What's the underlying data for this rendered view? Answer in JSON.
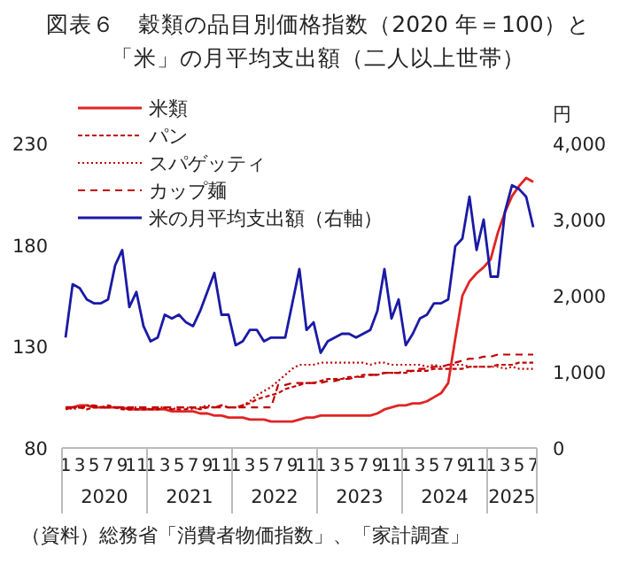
{
  "chart_data": {
    "type": "line",
    "title": "図表６　穀類の品目別価格指数（2020 年＝100）と",
    "subtitle": "「米」の月平均支出額（二人以上世帯）",
    "y2label": "円",
    "categories": [
      "1",
      null,
      "3",
      null,
      "5",
      null,
      "7",
      null,
      "9",
      null,
      "11",
      null,
      "1",
      null,
      "3",
      null,
      "5",
      null,
      "7",
      null,
      "9",
      null,
      "11",
      null,
      "1",
      null,
      "3",
      null,
      "5",
      null,
      "7",
      null,
      "9",
      null,
      "11",
      null,
      "1",
      null,
      "3",
      null,
      "5",
      null,
      "7",
      null,
      "9",
      null,
      "11",
      null,
      "1",
      null,
      "3",
      null,
      "5",
      null,
      "7",
      null,
      "9",
      null,
      "11",
      null,
      "1",
      null,
      "3",
      null,
      "5",
      null,
      "7"
    ],
    "series": [
      {
        "name": "米類",
        "color": "#e02424",
        "line_style": "solid",
        "values": [
          100,
          100,
          101,
          101,
          100,
          100,
          100,
          100,
          100,
          99,
          99,
          99,
          99,
          99,
          99,
          98,
          98,
          98,
          98,
          97,
          97,
          96,
          96,
          95,
          95,
          95,
          94,
          94,
          94,
          93,
          93,
          93,
          93,
          94,
          95,
          95,
          96,
          96,
          96,
          96,
          96,
          96,
          96,
          96,
          97,
          99,
          100,
          101,
          101,
          102,
          102,
          103,
          105,
          107,
          112,
          134,
          155,
          162,
          166,
          169,
          173,
          186,
          196,
          204,
          209,
          213,
          211
        ]
      },
      {
        "name": "パン",
        "color": "#c00000",
        "line_style": "dashed",
        "values": [
          99,
          100,
          100,
          99,
          100,
          100,
          101,
          100,
          99,
          99,
          99,
          99,
          99,
          99,
          100,
          99,
          99,
          99,
          100,
          99,
          100,
          100,
          101,
          100,
          100,
          101,
          102,
          104,
          105,
          106,
          107,
          109,
          110,
          111,
          112,
          112,
          113,
          114,
          114,
          114,
          115,
          115,
          116,
          116,
          116,
          117,
          117,
          117,
          117,
          118,
          118,
          118,
          119,
          119,
          119,
          119,
          119,
          120,
          120,
          120,
          120,
          121,
          121,
          121,
          122,
          122,
          122
        ]
      },
      {
        "name": "スパゲッティ",
        "color": "#c00000",
        "line_style": "dotted",
        "values": [
          100,
          99,
          100,
          101,
          101,
          100,
          100,
          100,
          100,
          99,
          100,
          100,
          99,
          100,
          100,
          99,
          100,
          100,
          99,
          100,
          101,
          100,
          101,
          100,
          100,
          101,
          103,
          106,
          108,
          110,
          113,
          116,
          119,
          121,
          121,
          121,
          122,
          122,
          122,
          122,
          122,
          122,
          122,
          121,
          122,
          122,
          121,
          121,
          121,
          121,
          121,
          120,
          121,
          120,
          121,
          121,
          121,
          120,
          120,
          120,
          120,
          120,
          119,
          120,
          119,
          119,
          119
        ]
      },
      {
        "name": "カップ麺",
        "color": "#c00000",
        "line_style": "dashed",
        "values": [
          100,
          100,
          100,
          100,
          101,
          100,
          100,
          100,
          100,
          100,
          100,
          100,
          100,
          100,
          100,
          100,
          100,
          100,
          100,
          100,
          100,
          100,
          100,
          100,
          100,
          100,
          100,
          100,
          100,
          100,
          111,
          111,
          112,
          112,
          112,
          112,
          112,
          113,
          113,
          114,
          114,
          115,
          115,
          116,
          116,
          117,
          117,
          117,
          118,
          118,
          119,
          119,
          120,
          120,
          121,
          122,
          123,
          124,
          124,
          125,
          125,
          126,
          126,
          126,
          126,
          126,
          126
        ]
      },
      {
        "name": "米の月平均支出額（右軸）",
        "color": "#1a1aa6",
        "line_style": "solid",
        "axis": "y2",
        "values": [
          1450,
          2150,
          2100,
          1950,
          1900,
          1900,
          1950,
          2400,
          2600,
          1850,
          2050,
          1600,
          1400,
          1450,
          1750,
          1700,
          1750,
          1650,
          1600,
          1800,
          2050,
          2300,
          1750,
          1750,
          1350,
          1400,
          1550,
          1550,
          1400,
          1450,
          1450,
          1450,
          1900,
          2350,
          1550,
          1650,
          1250,
          1400,
          1450,
          1500,
          1500,
          1450,
          1500,
          1550,
          1800,
          2350,
          1700,
          1950,
          1350,
          1500,
          1700,
          1750,
          1900,
          1900,
          1950,
          2650,
          2750,
          3300,
          2600,
          3000,
          2250,
          2250,
          3100,
          3450,
          3400,
          3300,
          2900
        ]
      }
    ],
    "ylim": [
      80,
      230
    ],
    "yticks": [
      80,
      130,
      180,
      230
    ],
    "y2lim": [
      0,
      4000
    ],
    "y2ticks": [
      0,
      {
        "value": 1000,
        "label": "1,000"
      },
      {
        "value": 2000,
        "label": "2,000"
      },
      {
        "value": 3000,
        "label": "3,000"
      },
      {
        "value": 4000,
        "label": "4,000"
      }
    ],
    "grid": false,
    "legend": "top left",
    "annotations": [
      "2020",
      "2021",
      "2022",
      "2023",
      "2024",
      "2025",
      "（資料）総務省「消費者物価指数」、「家計調査」"
    ]
  }
}
